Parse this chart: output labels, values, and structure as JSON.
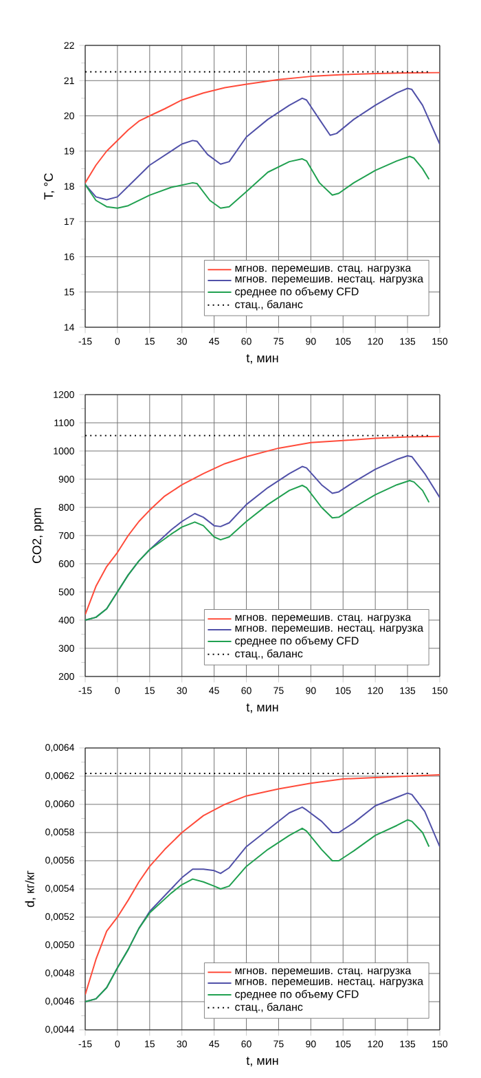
{
  "chart_data": [
    {
      "type": "line",
      "xlabel": "t, мин",
      "ylabel": "T, °C",
      "xlim": [
        -15,
        150
      ],
      "xticks": [
        -15,
        0,
        15,
        30,
        45,
        60,
        75,
        90,
        105,
        120,
        135,
        150
      ],
      "ylim": [
        14,
        22
      ],
      "yticks": [
        14,
        15,
        16,
        17,
        18,
        19,
        20,
        21,
        22
      ],
      "grid": true,
      "legend": "bottom right",
      "series": [
        {
          "name": "мгнов. перемешив. стац. нагрузка",
          "color": "#ff4b3a",
          "x": [
            -15,
            -10,
            -5,
            0,
            5,
            10,
            15,
            22,
            30,
            40,
            50,
            60,
            75,
            90,
            105,
            120,
            135,
            150
          ],
          "values": [
            18.1,
            18.6,
            19.0,
            19.3,
            19.6,
            19.85,
            20.0,
            20.2,
            20.45,
            20.65,
            20.8,
            20.9,
            21.03,
            21.12,
            21.17,
            21.2,
            21.22,
            21.23
          ]
        },
        {
          "name": "мгнов. перемешив. нестац. нагрузка",
          "color": "#5050a8",
          "x": [
            -15,
            -10,
            -5,
            0,
            5,
            15,
            25,
            30,
            35,
            37,
            42,
            48,
            52,
            60,
            70,
            80,
            86,
            88,
            94,
            99,
            102,
            110,
            120,
            130,
            135,
            137,
            142,
            150
          ],
          "values": [
            18.05,
            17.7,
            17.62,
            17.7,
            18.0,
            18.6,
            19.0,
            19.2,
            19.3,
            19.28,
            18.9,
            18.63,
            18.7,
            19.4,
            19.9,
            20.3,
            20.5,
            20.45,
            19.9,
            19.45,
            19.5,
            19.9,
            20.3,
            20.65,
            20.78,
            20.75,
            20.3,
            19.2
          ]
        },
        {
          "name": "среднее по объему CFD",
          "color": "#20a050",
          "x": [
            -15,
            -10,
            -5,
            0,
            5,
            15,
            25,
            35,
            37,
            43,
            48,
            52,
            60,
            70,
            80,
            86,
            88,
            94,
            100,
            103,
            110,
            120,
            130,
            136,
            138,
            142,
            145
          ],
          "values": [
            18.05,
            17.6,
            17.42,
            17.38,
            17.45,
            17.75,
            17.97,
            18.1,
            18.08,
            17.6,
            17.38,
            17.42,
            17.85,
            18.4,
            18.7,
            18.78,
            18.72,
            18.1,
            17.75,
            17.8,
            18.1,
            18.45,
            18.72,
            18.85,
            18.8,
            18.5,
            18.2
          ]
        },
        {
          "name": "стац., баланс",
          "color": "#000000",
          "line_style": "dotted",
          "x": [
            -15,
            145
          ],
          "values": [
            21.25,
            21.25
          ]
        }
      ]
    },
    {
      "type": "line",
      "xlabel": "t, мин",
      "ylabel": "CO2, ppm",
      "xlim": [
        -15,
        150
      ],
      "xticks": [
        -15,
        0,
        15,
        30,
        45,
        60,
        75,
        90,
        105,
        120,
        135,
        150
      ],
      "ylim": [
        200,
        1200
      ],
      "yticks": [
        200,
        300,
        400,
        500,
        600,
        700,
        800,
        900,
        1000,
        1100,
        1200
      ],
      "grid": true,
      "legend": "bottom right",
      "series": [
        {
          "name": "мгнов. перемешив. стац. нагрузка",
          "color": "#ff4b3a",
          "x": [
            -15,
            -10,
            -5,
            0,
            5,
            10,
            15,
            22,
            30,
            40,
            50,
            60,
            75,
            90,
            105,
            120,
            135,
            150
          ],
          "values": [
            420,
            520,
            590,
            640,
            700,
            750,
            790,
            840,
            880,
            920,
            955,
            980,
            1010,
            1030,
            1037,
            1045,
            1050,
            1052
          ]
        },
        {
          "name": "мгнов. перемешив. нестац. нагрузка",
          "color": "#5050a8",
          "x": [
            -15,
            -10,
            -5,
            0,
            5,
            10,
            15,
            25,
            30,
            36,
            40,
            45,
            48,
            52,
            60,
            70,
            80,
            86,
            88,
            95,
            100,
            103,
            110,
            120,
            130,
            135,
            137,
            143,
            150
          ],
          "values": [
            400,
            410,
            440,
            500,
            560,
            610,
            650,
            720,
            750,
            778,
            765,
            735,
            732,
            745,
            810,
            870,
            920,
            945,
            940,
            880,
            850,
            855,
            890,
            935,
            970,
            983,
            980,
            920,
            835
          ]
        },
        {
          "name": "среднее по объему CFD",
          "color": "#20a050",
          "x": [
            -15,
            -10,
            -5,
            0,
            5,
            10,
            15,
            25,
            30,
            36,
            40,
            45,
            48,
            52,
            60,
            70,
            80,
            86,
            88,
            95,
            100,
            103,
            110,
            120,
            130,
            136,
            138,
            142,
            145
          ],
          "values": [
            400,
            410,
            440,
            500,
            560,
            610,
            650,
            705,
            730,
            748,
            735,
            695,
            685,
            695,
            750,
            810,
            860,
            878,
            870,
            800,
            763,
            765,
            800,
            845,
            880,
            895,
            890,
            860,
            818
          ]
        },
        {
          "name": "стац., баланс",
          "color": "#000000",
          "line_style": "dotted",
          "x": [
            -15,
            145
          ],
          "values": [
            1055,
            1055
          ]
        }
      ]
    },
    {
      "type": "line",
      "xlabel": "t, мин",
      "ylabel": "d, кг/кг",
      "xlim": [
        -15,
        150
      ],
      "xticks": [
        -15,
        0,
        15,
        30,
        45,
        60,
        75,
        90,
        105,
        120,
        135,
        150
      ],
      "ylim": [
        0.0044,
        0.0064
      ],
      "yticks": [
        {
          "value": 0.0044,
          "label": "0,0044"
        },
        {
          "value": 0.0046,
          "label": "0,0046"
        },
        {
          "value": 0.0048,
          "label": "0,0048"
        },
        {
          "value": 0.005,
          "label": "0,0050"
        },
        {
          "value": 0.0052,
          "label": "0,0052"
        },
        {
          "value": 0.0054,
          "label": "0,0054"
        },
        {
          "value": 0.0056,
          "label": "0,0056"
        },
        {
          "value": 0.0058,
          "label": "0,0058"
        },
        {
          "value": 0.006,
          "label": "0,0060"
        },
        {
          "value": 0.0062,
          "label": "0,0062"
        },
        {
          "value": 0.0064,
          "label": "0,0064"
        }
      ],
      "grid": true,
      "legend": "bottom right",
      "series": [
        {
          "name": "мгнов. перемешив. стац. нагрузка",
          "color": "#ff4b3a",
          "x": [
            -15,
            -10,
            -5,
            0,
            5,
            10,
            15,
            22,
            30,
            40,
            50,
            60,
            75,
            90,
            105,
            120,
            135,
            150
          ],
          "values": [
            0.00465,
            0.0049,
            0.0051,
            0.0052,
            0.00532,
            0.00545,
            0.00556,
            0.00568,
            0.0058,
            0.00592,
            0.006,
            0.00606,
            0.00611,
            0.00615,
            0.00618,
            0.00619,
            0.0062,
            0.00621
          ]
        },
        {
          "name": "мгнов. перемешив. нестац. нагрузка",
          "color": "#5050a8",
          "x": [
            -15,
            -10,
            -5,
            0,
            5,
            10,
            15,
            25,
            30,
            35,
            40,
            45,
            48,
            52,
            60,
            70,
            80,
            86,
            88,
            95,
            100,
            103,
            110,
            120,
            130,
            135,
            137,
            143,
            150
          ],
          "values": [
            0.0046,
            0.00462,
            0.0047,
            0.00484,
            0.00497,
            0.00512,
            0.00524,
            0.0054,
            0.00548,
            0.00554,
            0.00554,
            0.00553,
            0.00551,
            0.00555,
            0.0057,
            0.00582,
            0.00594,
            0.00598,
            0.00596,
            0.00588,
            0.0058,
            0.0058,
            0.00587,
            0.00599,
            0.00605,
            0.00608,
            0.00607,
            0.00595,
            0.0057
          ]
        },
        {
          "name": "среднее по объему CFD",
          "color": "#20a050",
          "x": [
            -15,
            -10,
            -5,
            0,
            5,
            10,
            15,
            25,
            30,
            35,
            40,
            45,
            48,
            52,
            60,
            70,
            80,
            86,
            88,
            95,
            100,
            103,
            110,
            120,
            130,
            135,
            137,
            142,
            145
          ],
          "values": [
            0.0046,
            0.00462,
            0.0047,
            0.00484,
            0.00497,
            0.00512,
            0.00523,
            0.00537,
            0.00543,
            0.00547,
            0.00545,
            0.00542,
            0.0054,
            0.00542,
            0.00556,
            0.00568,
            0.00578,
            0.00583,
            0.00581,
            0.00568,
            0.0056,
            0.0056,
            0.00567,
            0.00578,
            0.00585,
            0.00589,
            0.00588,
            0.0058,
            0.0057
          ]
        },
        {
          "name": "стац., баланс",
          "color": "#000000",
          "line_style": "dotted",
          "x": [
            -15,
            145
          ],
          "values": [
            0.00622,
            0.00622
          ]
        }
      ]
    }
  ]
}
